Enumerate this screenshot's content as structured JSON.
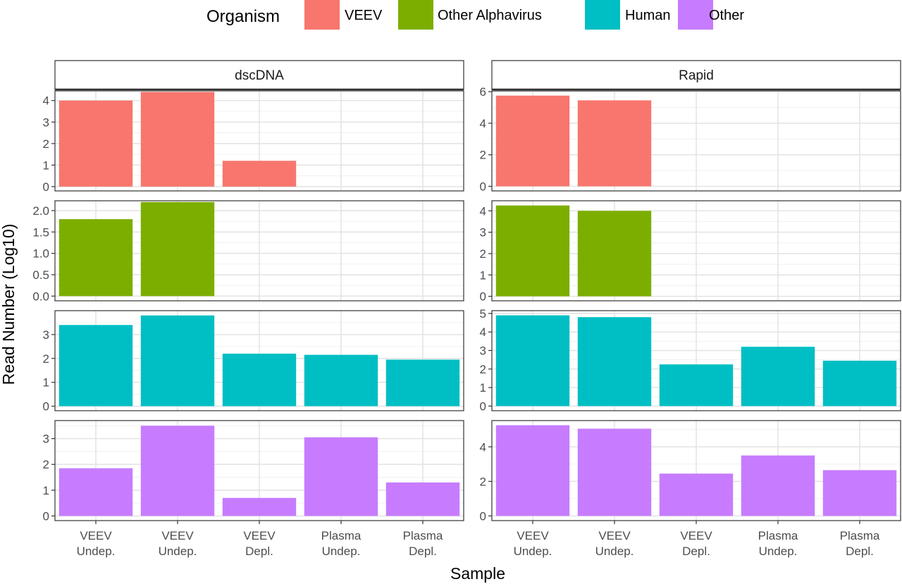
{
  "chart_data": {
    "type": "bar",
    "xlabel": "Sample",
    "ylabel": "Read Number (Log10)",
    "categories": [
      "VEEV\nUndep.",
      "VEEV\nUndep.",
      "VEEV\nDepl.",
      "Plasma\nUndep.",
      "Plasma\nDepl."
    ],
    "legend": {
      "title": "Organism",
      "placement": "top",
      "entries": [
        {
          "name": "VEEV",
          "color": "#F8766D"
        },
        {
          "name": "Other Alphavirus",
          "color": "#7CAE00"
        },
        {
          "name": "Human",
          "color": "#00BFC4"
        },
        {
          "name": "Other",
          "color": "#C77CFF"
        }
      ]
    },
    "facet_columns": [
      "dscDNA",
      "Rapid"
    ],
    "facet_rows": [
      "VEEV",
      "Other Alphavirus",
      "Human",
      "Other"
    ],
    "grid": true,
    "panels": [
      {
        "column": "dscDNA",
        "organism": "VEEV",
        "values": [
          4.0,
          4.4,
          1.2,
          null,
          null
        ],
        "ylim": [
          -0.2,
          4.45
        ],
        "yticks": [
          0,
          1,
          2,
          3,
          4
        ],
        "ytick_labels": [
          "0",
          "1",
          "2",
          "3",
          "4"
        ]
      },
      {
        "column": "dscDNA",
        "organism": "Other Alphavirus",
        "values": [
          1.8,
          2.2,
          null,
          null,
          null
        ],
        "ylim": [
          -0.11,
          2.23
        ],
        "yticks": [
          0,
          0.5,
          1,
          1.5,
          2
        ],
        "ytick_labels": [
          "0.0",
          "0.5",
          "1.0",
          "1.5",
          "2.0"
        ]
      },
      {
        "column": "dscDNA",
        "organism": "Human",
        "values": [
          3.4,
          3.8,
          2.2,
          2.15,
          1.95
        ],
        "ylim": [
          -0.19,
          4.0
        ],
        "yticks": [
          0,
          1,
          2,
          3
        ],
        "ytick_labels": [
          "0",
          "1",
          "2",
          "3"
        ]
      },
      {
        "column": "dscDNA",
        "organism": "Other",
        "values": [
          1.85,
          3.5,
          0.7,
          3.05,
          1.3
        ],
        "ylim": [
          -0.18,
          3.7
        ],
        "yticks": [
          0,
          1,
          2,
          3
        ],
        "ytick_labels": [
          "0",
          "1",
          "2",
          "3"
        ]
      },
      {
        "column": "Rapid",
        "organism": "VEEV",
        "values": [
          5.75,
          5.45,
          null,
          null,
          null
        ],
        "ylim": [
          -0.29,
          6.05
        ],
        "yticks": [
          0,
          2,
          4,
          6
        ],
        "ytick_labels": [
          "0",
          "2",
          "4",
          "6"
        ]
      },
      {
        "column": "Rapid",
        "organism": "Other Alphavirus",
        "values": [
          4.25,
          4.0,
          null,
          null,
          null
        ],
        "ylim": [
          -0.21,
          4.47
        ],
        "yticks": [
          0,
          1,
          2,
          3,
          4
        ],
        "ytick_labels": [
          "0",
          "1",
          "2",
          "3",
          "4"
        ]
      },
      {
        "column": "Rapid",
        "organism": "Human",
        "values": [
          4.9,
          4.8,
          2.25,
          3.2,
          2.45
        ],
        "ylim": [
          -0.25,
          5.15
        ],
        "yticks": [
          0,
          1,
          2,
          3,
          4,
          5
        ],
        "ytick_labels": [
          "0",
          "1",
          "2",
          "3",
          "4",
          "5"
        ]
      },
      {
        "column": "Rapid",
        "organism": "Other",
        "values": [
          5.25,
          5.05,
          2.45,
          3.5,
          2.65
        ],
        "ylim": [
          -0.27,
          5.52
        ],
        "yticks": [
          0,
          2,
          4
        ],
        "ytick_labels": [
          "0",
          "2",
          "4"
        ]
      }
    ]
  }
}
